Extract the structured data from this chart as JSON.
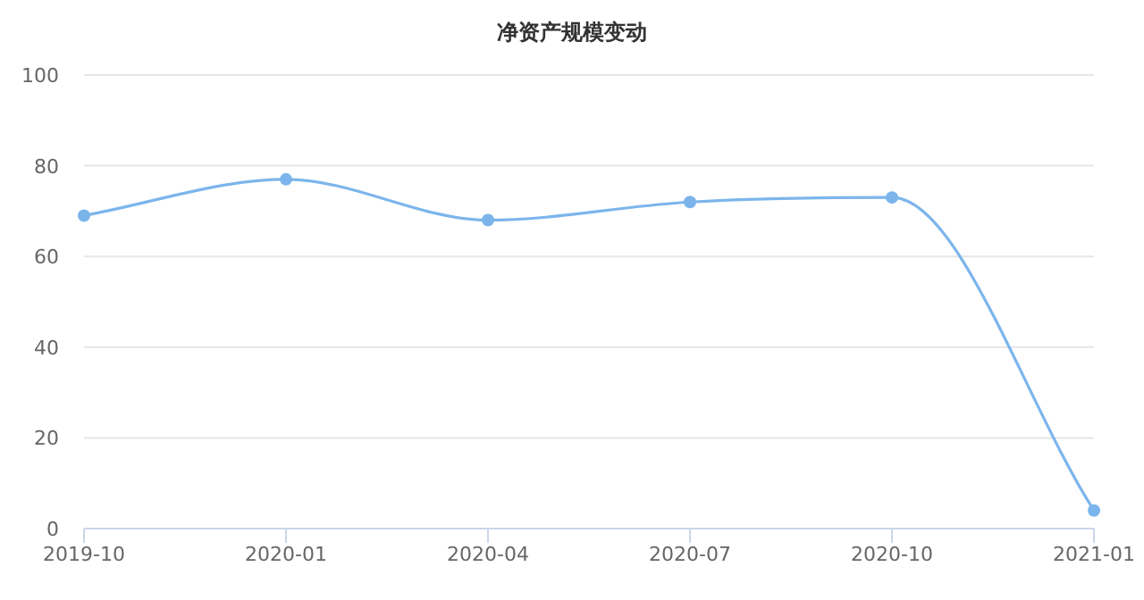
{
  "chart_data": {
    "type": "line",
    "title": "净资产规模变动",
    "categories": [
      "2019-10",
      "2020-01",
      "2020-04",
      "2020-07",
      "2020-10",
      "2021-01"
    ],
    "values": [
      69,
      77,
      68,
      72,
      73,
      4
    ],
    "color": "#7cb5ec",
    "ylim": [
      0,
      100
    ],
    "yticks": [
      0,
      20,
      40,
      60,
      80,
      100
    ],
    "grid": "y",
    "marker": "circle"
  }
}
